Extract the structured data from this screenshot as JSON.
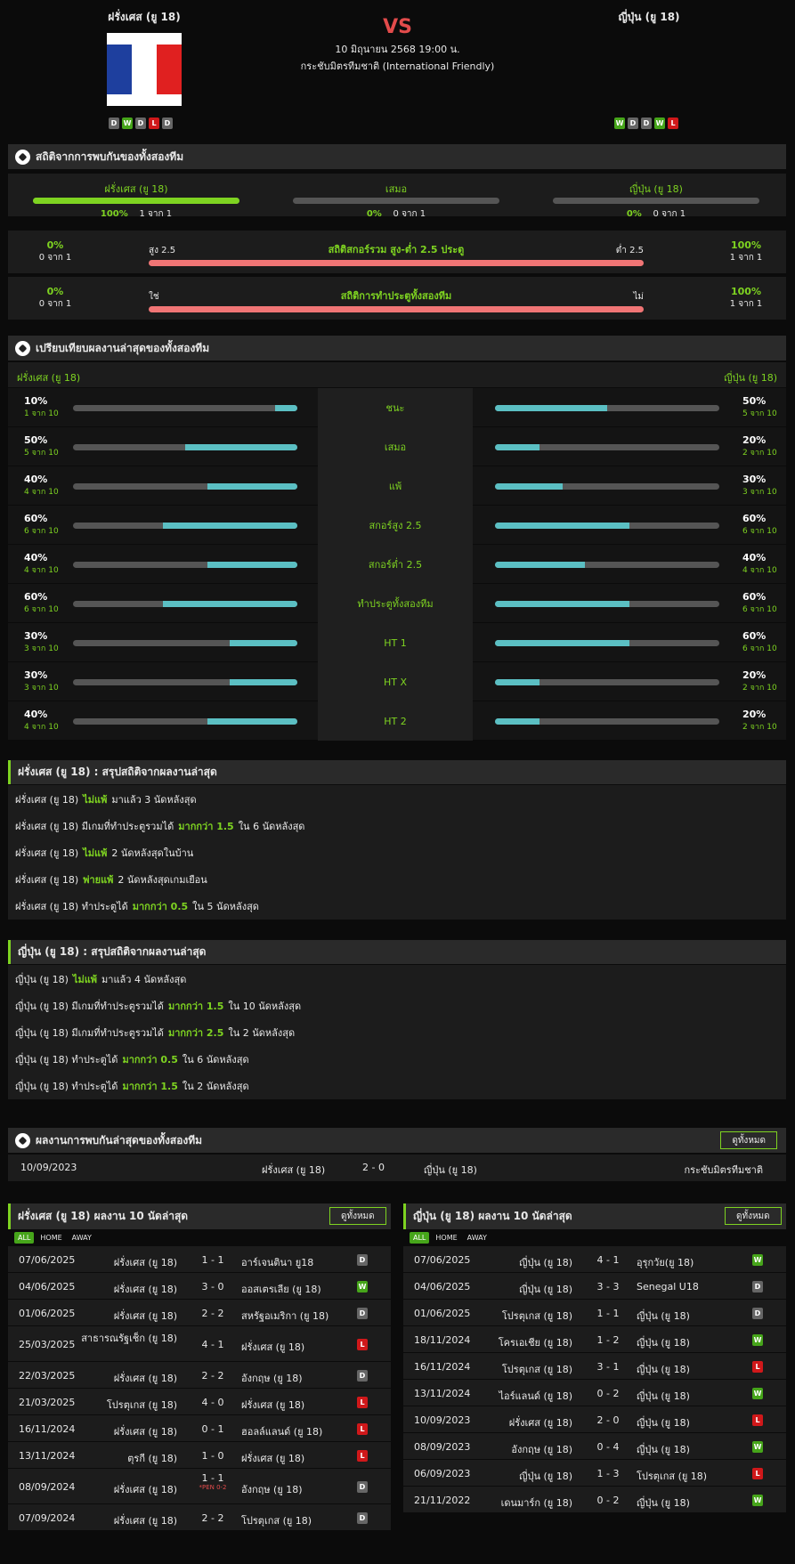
{
  "header": {
    "home_name": "ฝรั่งเศส (ยู 18)",
    "away_name": "ญี่ปุ่น (ยู 18)",
    "vs": "VS",
    "date": "10 มิถุนายน 2568 19:00 น.",
    "competition": "กระชับมิตรทีมชาติ (International Friendly)",
    "home_form": [
      "D",
      "W",
      "D",
      "L",
      "D"
    ],
    "away_form": [
      "W",
      "D",
      "D",
      "W",
      "L"
    ],
    "flag_colors": [
      "#1e3f9e",
      "#ffffff",
      "#e02020"
    ]
  },
  "h2h": {
    "title": "สถิติจากการพบกันของทั้งสองทีม",
    "cols": [
      {
        "label": "ฝรั่งเศส (ยู 18)",
        "pct": "100%",
        "count": "1 จาก 1",
        "fill": 1.0
      },
      {
        "label": "เสมอ",
        "pct": "0%",
        "count": "0 จาก 1",
        "fill": 0
      },
      {
        "label": "ญี่ปุ่น (ยู 18)",
        "pct": "0%",
        "count": "0 จาก 1",
        "fill": 0
      }
    ],
    "ou": {
      "l_pct": "0%",
      "l_cnt": "0 จาก 1",
      "left": "สูง 2.5",
      "title": "สถิติสกอร์รวม สูง-ต่ำ 2.5 ประตู",
      "right": "ต่ำ 2.5",
      "r_pct": "100%",
      "r_cnt": "1 จาก 1"
    },
    "btts": {
      "l_pct": "0%",
      "l_cnt": "0 จาก 1",
      "left": "ใช่",
      "title": "สถิติการทำประตูทั้งสองทีม",
      "right": "ไม่",
      "r_pct": "100%",
      "r_cnt": "1 จาก 1"
    }
  },
  "compare": {
    "title": "เปรียบเทียบผลงานล่าสุดของทั้งสองทีม",
    "home": "ฝรั่งเศส (ยู 18)",
    "away": "ญี่ปุ่น (ยู 18)",
    "rows": [
      {
        "label": "ชนะ",
        "lp": "10%",
        "lc": "1 จาก 10",
        "lf": 0.1,
        "rp": "50%",
        "rc": "5 จาก 10",
        "rf": 0.5
      },
      {
        "label": "เสมอ",
        "lp": "50%",
        "lc": "5 จาก 10",
        "lf": 0.5,
        "rp": "20%",
        "rc": "2 จาก 10",
        "rf": 0.2
      },
      {
        "label": "แพ้",
        "lp": "40%",
        "lc": "4 จาก 10",
        "lf": 0.4,
        "rp": "30%",
        "rc": "3 จาก 10",
        "rf": 0.3
      },
      {
        "label": "สกอร์สูง 2.5",
        "lp": "60%",
        "lc": "6 จาก 10",
        "lf": 0.6,
        "rp": "60%",
        "rc": "6 จาก 10",
        "rf": 0.6
      },
      {
        "label": "สกอร์ต่ำ 2.5",
        "lp": "40%",
        "lc": "4 จาก 10",
        "lf": 0.4,
        "rp": "40%",
        "rc": "4 จาก 10",
        "rf": 0.4
      },
      {
        "label": "ทำประตูทั้งสองทีม",
        "lp": "60%",
        "lc": "6 จาก 10",
        "lf": 0.6,
        "rp": "60%",
        "rc": "6 จาก 10",
        "rf": 0.6
      },
      {
        "label": "HT 1",
        "lp": "30%",
        "lc": "3 จาก 10",
        "lf": 0.3,
        "rp": "60%",
        "rc": "6 จาก 10",
        "rf": 0.6
      },
      {
        "label": "HT X",
        "lp": "30%",
        "lc": "3 จาก 10",
        "lf": 0.3,
        "rp": "20%",
        "rc": "2 จาก 10",
        "rf": 0.2
      },
      {
        "label": "HT 2",
        "lp": "40%",
        "lc": "4 จาก 10",
        "lf": 0.4,
        "rp": "20%",
        "rc": "2 จาก 10",
        "rf": 0.2
      }
    ]
  },
  "home_summary": {
    "title": "ฝรั่งเศส (ยู 18) : สรุปสถิติจากผลงานล่าสุด",
    "rows": [
      {
        "pre": "ฝรั่งเศส (ยู 18)",
        "hl": "ไม่แพ้",
        "post": "มาแล้ว 3 นัดหลังสุด"
      },
      {
        "pre": "ฝรั่งเศส (ยู 18) มีเกมที่ทำประตูรวมได้",
        "hl": "มากกว่า 1.5",
        "post": "ใน 6 นัดหลังสุด"
      },
      {
        "pre": "ฝรั่งเศส (ยู 18)",
        "hl": "ไม่แพ้",
        "post": "2 นัดหลังสุดในบ้าน"
      },
      {
        "pre": "ฝรั่งเศส (ยู 18)",
        "hl": "พ่ายแพ้",
        "post": "2 นัดหลังสุดเกมเยือน"
      },
      {
        "pre": "ฝรั่งเศส (ยู 18) ทำประตูได้",
        "hl": "มากกว่า 0.5",
        "post": "ใน 5 นัดหลังสุด"
      }
    ]
  },
  "away_summary": {
    "title": "ญี่ปุ่น (ยู 18) : สรุปสถิติจากผลงานล่าสุด",
    "rows": [
      {
        "pre": "ญี่ปุ่น (ยู 18)",
        "hl": "ไม่แพ้",
        "post": "มาแล้ว 4 นัดหลังสุด"
      },
      {
        "pre": "ญี่ปุ่น (ยู 18) มีเกมที่ทำประตูรวมได้",
        "hl": "มากกว่า 1.5",
        "post": "ใน 10 นัดหลังสุด"
      },
      {
        "pre": "ญี่ปุ่น (ยู 18) มีเกมที่ทำประตูรวมได้",
        "hl": "มากกว่า 2.5",
        "post": "ใน 2 นัดหลังสุด"
      },
      {
        "pre": "ญี่ปุ่น (ยู 18) ทำประตูได้",
        "hl": "มากกว่า 0.5",
        "post": "ใน 6 นัดหลังสุด"
      },
      {
        "pre": "ญี่ปุ่น (ยู 18) ทำประตูได้",
        "hl": "มากกว่า 1.5",
        "post": "ใน 2 นัดหลังสุด"
      }
    ]
  },
  "recent_h2h": {
    "title": "ผลงานการพบกันล่าสุดของทั้งสองทีม",
    "view_all": "ดูทั้งหมด",
    "match": {
      "date": "10/09/2023",
      "home": "ฝรั่งเศส (ยู 18)",
      "score": "2 - 0",
      "away": "ญี่ปุ่น (ยู 18)",
      "comp": "กระชับมิตรทีมชาติ"
    }
  },
  "home_last10": {
    "title": "ฝรั่งเศส (ยู 18) ผลงาน 10 นัดล่าสุด",
    "view_all": "ดูทั้งหมด",
    "tabs": [
      "ALL",
      "HOME",
      "AWAY"
    ],
    "matches": [
      {
        "date": "07/06/2025",
        "home": "ฝรั่งเศส (ยู 18)",
        "score": "1 - 1",
        "away": "อาร์เจนตินา ยู18",
        "res": "D"
      },
      {
        "date": "04/06/2025",
        "home": "ฝรั่งเศส (ยู 18)",
        "score": "3 - 0",
        "away": "ออสเตรเลีย (ยู 18)",
        "res": "W"
      },
      {
        "date": "01/06/2025",
        "home": "ฝรั่งเศส (ยู 18)",
        "score": "2 - 2",
        "away": "สหรัฐอเมริกา (ยู 18)",
        "res": "D"
      },
      {
        "date": "25/03/2025",
        "home": "สาธารณรัฐเช็ก (ยู 18)",
        "score": "4 - 1",
        "away": "ฝรั่งเศส (ยู 18)",
        "res": "L"
      },
      {
        "date": "22/03/2025",
        "home": "ฝรั่งเศส (ยู 18)",
        "score": "2 - 2",
        "away": "อังกฤษ (ยู 18)",
        "res": "D"
      },
      {
        "date": "21/03/2025",
        "home": "โปรตุเกส (ยู 18)",
        "score": "4 - 0",
        "away": "ฝรั่งเศส (ยู 18)",
        "res": "L"
      },
      {
        "date": "16/11/2024",
        "home": "ฝรั่งเศส (ยู 18)",
        "score": "0 - 1",
        "away": "ฮอลล์แลนด์ (ยู 18)",
        "res": "L"
      },
      {
        "date": "13/11/2024",
        "home": "ตุรกี (ยู 18)",
        "score": "1 - 0",
        "away": "ฝรั่งเศส (ยู 18)",
        "res": "L"
      },
      {
        "date": "08/09/2024",
        "home": "ฝรั่งเศส (ยู 18)",
        "score": "1 - 1",
        "pen": "*PEN 0-2",
        "away": "อังกฤษ (ยู 18)",
        "res": "D"
      },
      {
        "date": "07/09/2024",
        "home": "ฝรั่งเศส (ยู 18)",
        "score": "2 - 2",
        "away": "โปรตุเกส (ยู 18)",
        "res": "D"
      }
    ]
  },
  "away_last10": {
    "title": "ญี่ปุ่น (ยู 18) ผลงาน 10 นัดล่าสุด",
    "view_all": "ดูทั้งหมด",
    "tabs": [
      "ALL",
      "HOME",
      "AWAY"
    ],
    "matches": [
      {
        "date": "07/06/2025",
        "home": "ญี่ปุ่น (ยู 18)",
        "score": "4 - 1",
        "away": "อุรุกวัย(ยู 18)",
        "res": "W"
      },
      {
        "date": "04/06/2025",
        "home": "ญี่ปุ่น (ยู 18)",
        "score": "3 - 3",
        "away": "Senegal U18",
        "res": "D"
      },
      {
        "date": "01/06/2025",
        "home": "โปรตุเกส (ยู 18)",
        "score": "1 - 1",
        "away": "ญี่ปุ่น (ยู 18)",
        "res": "D"
      },
      {
        "date": "18/11/2024",
        "home": "โครเอเชีย (ยู 18)",
        "score": "1 - 2",
        "away": "ญี่ปุ่น (ยู 18)",
        "res": "W"
      },
      {
        "date": "16/11/2024",
        "home": "โปรตุเกส (ยู 18)",
        "score": "3 - 1",
        "away": "ญี่ปุ่น (ยู 18)",
        "res": "L"
      },
      {
        "date": "13/11/2024",
        "home": "ไอร์แลนด์ (ยู 18)",
        "score": "0 - 2",
        "away": "ญี่ปุ่น (ยู 18)",
        "res": "W"
      },
      {
        "date": "10/09/2023",
        "home": "ฝรั่งเศส (ยู 18)",
        "score": "2 - 0",
        "away": "ญี่ปุ่น (ยู 18)",
        "res": "L"
      },
      {
        "date": "08/09/2023",
        "home": "อังกฤษ (ยู 18)",
        "score": "0 - 4",
        "away": "ญี่ปุ่น (ยู 18)",
        "res": "W"
      },
      {
        "date": "06/09/2023",
        "home": "ญี่ปุ่น (ยู 18)",
        "score": "1 - 3",
        "away": "โปรตุเกส (ยู 18)",
        "res": "L"
      },
      {
        "date": "21/11/2022",
        "home": "เดนมาร์ก (ยู 18)",
        "score": "0 - 2",
        "away": "ญี่ปุ่น (ยู 18)",
        "res": "W"
      }
    ]
  }
}
